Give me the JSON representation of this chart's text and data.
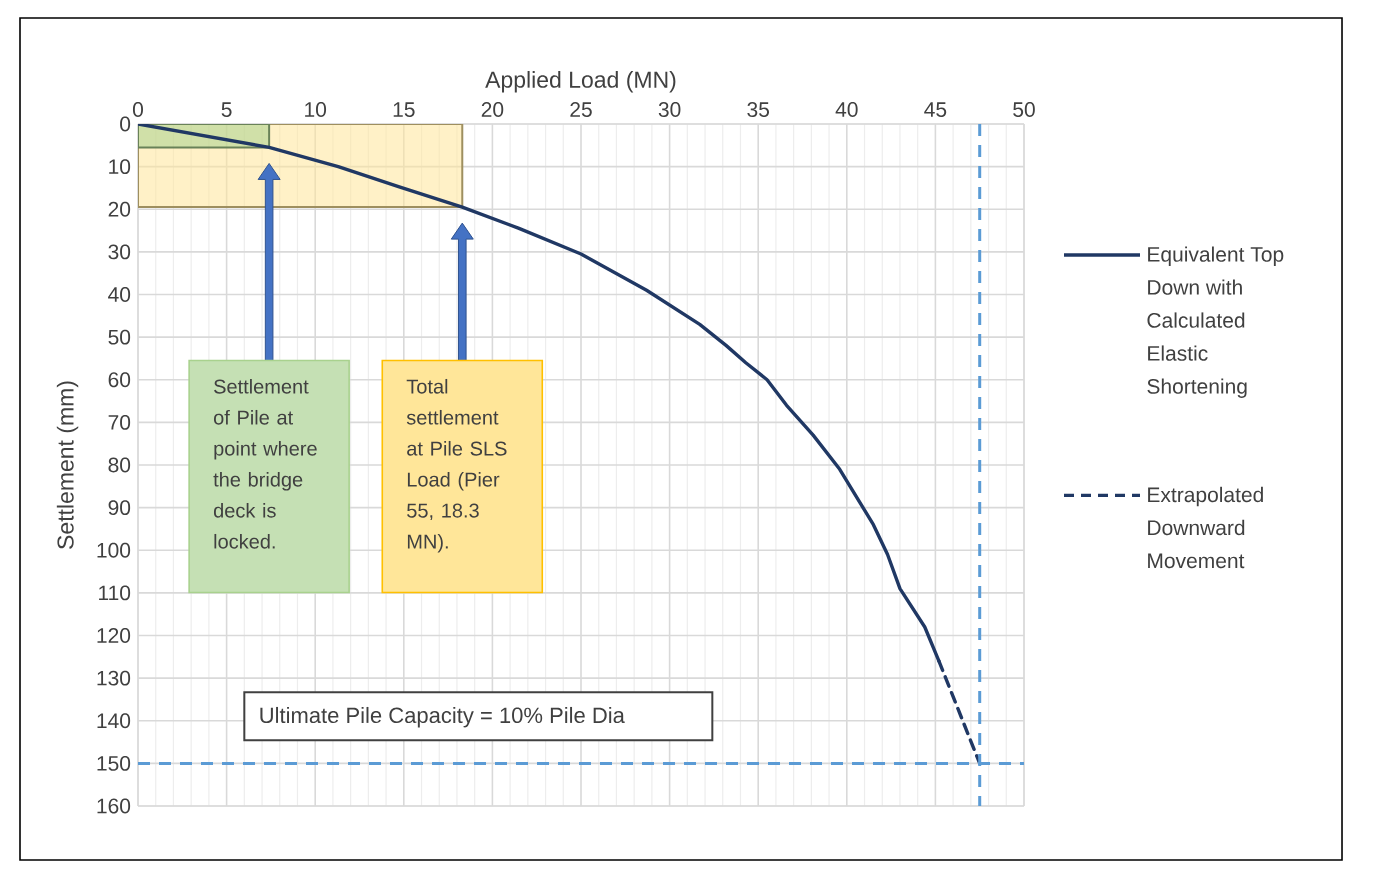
{
  "chart_data": {
    "type": "line",
    "xlabel": "Applied Load (MN)",
    "ylabel": "Settlement (mm)",
    "series": [
      {
        "type": "area",
        "color": "#ffe699",
        "x": [
          0,
          18.3
        ],
        "values": [
          19.5,
          19.5
        ]
      },
      {
        "type": "area",
        "color": "#a9d18e",
        "x": [
          0,
          7.4
        ],
        "values": [
          5.5,
          5.5
        ]
      },
      {
        "name": "Equivalent Top Down with Calculated Elastic Shortening",
        "color": "#203864",
        "line_style": "solid",
        "x": [
          0,
          7.4,
          11.3,
          14.7,
          18.3,
          21.5,
          25,
          28.7,
          31.7,
          33.2,
          34.3,
          35.5,
          36.6,
          38.1,
          39.6,
          41.5,
          42.3,
          43.0,
          44.4,
          45.2
        ],
        "values": [
          0,
          5.5,
          10,
          14.7,
          19.5,
          24.5,
          30.5,
          39,
          47,
          52,
          56,
          60,
          66,
          73,
          81,
          94,
          101,
          109,
          118,
          126
        ]
      },
      {
        "name": "Extrapolated Downward Movement",
        "color": "#203864",
        "line_style": "dashed",
        "x": [
          45.2,
          47.5
        ],
        "values": [
          126,
          150
        ]
      }
    ],
    "xlim": [
      0,
      50
    ],
    "xticks": [
      0,
      5,
      10,
      15,
      20,
      25,
      30,
      35,
      40,
      45,
      50
    ],
    "ylim": [
      160,
      0
    ],
    "yticks": [
      0,
      10,
      20,
      30,
      40,
      50,
      60,
      70,
      80,
      90,
      100,
      110,
      120,
      130,
      140,
      150,
      160
    ],
    "grid": true,
    "legend": "right",
    "ref_lines": [
      {
        "axis": "x",
        "value": 47.5,
        "color": "#5b9bd5",
        "line_style": "dashed"
      },
      {
        "axis": "y",
        "value": 150,
        "color": "#5b9bd5",
        "line_style": "dashed"
      }
    ],
    "annotations": [
      "Settlement of Pile at point where the bridge deck is locked.",
      "Total settlement at Pile SLS Load (Pier 55, 18.3 MN).",
      "Ultimate Pile Capacity = 10% Pile Dia"
    ]
  }
}
